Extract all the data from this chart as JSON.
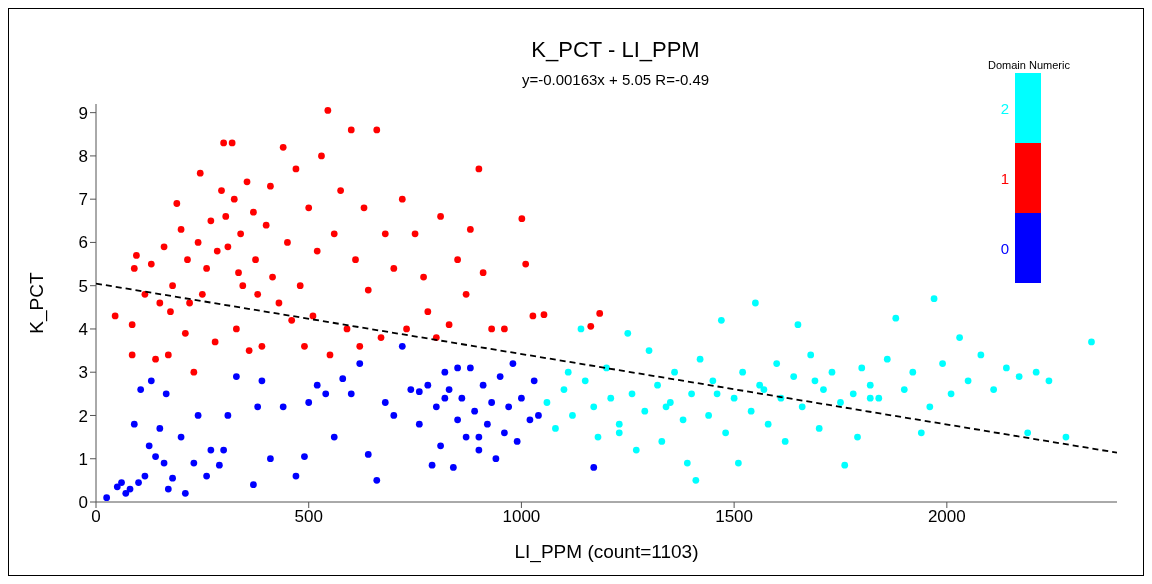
{
  "chart_data": {
    "type": "scatter",
    "title": "K_PCT - LI_PPM",
    "subtitle": "y=-0.00163x + 5.05  R=-0.49",
    "xlabel": "LI_PPM (count=1103)",
    "ylabel": "K_PCT",
    "legend_title": "Domain Numeric",
    "legend": "top right",
    "grid": false,
    "marker": "circle",
    "xlim": [
      0,
      2400
    ],
    "xticks": [
      0,
      500,
      1000,
      1500,
      2000
    ],
    "ylim": [
      0,
      9.2
    ],
    "yticks": [
      0,
      1,
      2,
      3,
      4,
      5,
      6,
      7,
      8,
      9
    ],
    "series": [
      {
        "name": "0",
        "color": "#0000ff",
        "x": [
          25,
          50,
          60,
          70,
          80,
          90,
          100,
          105,
          115,
          125,
          130,
          140,
          150,
          160,
          165,
          170,
          180,
          200,
          210,
          230,
          240,
          260,
          270,
          290,
          300,
          310,
          330,
          370,
          380,
          390,
          410,
          440,
          470,
          490,
          500,
          520,
          540,
          560,
          580,
          600,
          620,
          640,
          660,
          680,
          700,
          720,
          740,
          760,
          760,
          780,
          790,
          800,
          810,
          820,
          820,
          830,
          840,
          850,
          850,
          860,
          870,
          880,
          890,
          900,
          900,
          910,
          920,
          930,
          940,
          950,
          960,
          970,
          980,
          990,
          1000,
          1020,
          1030,
          1040,
          1170
        ],
        "values": [
          0.1,
          0.35,
          0.45,
          0.2,
          0.3,
          1.8,
          0.45,
          2.6,
          0.6,
          1.3,
          2.8,
          1.05,
          1.7,
          0.9,
          2.5,
          0.3,
          0.55,
          1.5,
          0.2,
          0.9,
          2.0,
          0.6,
          1.2,
          0.85,
          1.2,
          2.0,
          2.9,
          0.4,
          2.2,
          2.8,
          1.0,
          2.2,
          0.6,
          1.05,
          2.3,
          2.7,
          2.5,
          1.5,
          2.85,
          2.5,
          3.2,
          1.1,
          0.5,
          2.3,
          2.0,
          3.6,
          2.6,
          1.8,
          2.55,
          2.7,
          0.85,
          2.2,
          1.3,
          3.0,
          2.4,
          2.6,
          0.8,
          1.9,
          3.1,
          2.4,
          1.5,
          3.1,
          2.1,
          1.2,
          1.5,
          2.7,
          1.8,
          2.3,
          1.0,
          2.9,
          1.6,
          2.2,
          3.2,
          1.4,
          2.4,
          1.9,
          2.8,
          2.0,
          0.8
        ]
      },
      {
        "name": "1",
        "color": "#ff0000",
        "x": [
          45,
          85,
          85,
          90,
          95,
          115,
          130,
          140,
          150,
          160,
          170,
          175,
          180,
          190,
          200,
          210,
          215,
          220,
          230,
          240,
          245,
          250,
          260,
          270,
          280,
          285,
          295,
          300,
          305,
          310,
          320,
          325,
          330,
          335,
          340,
          345,
          355,
          360,
          370,
          375,
          380,
          390,
          400,
          410,
          415,
          430,
          440,
          450,
          460,
          470,
          480,
          490,
          500,
          510,
          520,
          530,
          545,
          550,
          560,
          575,
          590,
          600,
          610,
          620,
          630,
          640,
          660,
          670,
          680,
          700,
          720,
          730,
          750,
          770,
          780,
          800,
          810,
          830,
          850,
          870,
          880,
          900,
          910,
          930,
          960,
          1001,
          1010,
          1027,
          1053,
          1163,
          1184
        ],
        "values": [
          4.3,
          3.4,
          4.1,
          5.4,
          5.7,
          4.8,
          5.5,
          3.3,
          4.6,
          5.9,
          3.4,
          4.4,
          5.0,
          6.9,
          6.3,
          3.9,
          5.6,
          4.6,
          3.0,
          6.0,
          7.6,
          4.8,
          5.4,
          6.5,
          3.7,
          5.8,
          7.2,
          8.3,
          6.6,
          5.9,
          8.3,
          7.0,
          4.0,
          5.3,
          6.2,
          5.0,
          7.4,
          3.5,
          6.7,
          5.6,
          4.8,
          3.6,
          6.4,
          7.3,
          5.2,
          4.6,
          8.2,
          6.0,
          4.2,
          7.7,
          5.0,
          3.6,
          6.8,
          4.3,
          5.8,
          8.0,
          9.05,
          3.4,
          6.2,
          7.2,
          4.0,
          8.6,
          5.6,
          3.6,
          6.8,
          4.9,
          8.6,
          3.8,
          6.2,
          5.4,
          7.0,
          4.0,
          6.2,
          5.2,
          4.4,
          3.8,
          6.6,
          4.1,
          5.6,
          4.8,
          6.3,
          7.7,
          5.3,
          4.0,
          4.0,
          6.55,
          5.5,
          4.3,
          4.33,
          4.06,
          4.36
        ]
      },
      {
        "name": "2",
        "color": "#00ffff",
        "x": [
          1060,
          1080,
          1100,
          1110,
          1120,
          1140,
          1150,
          1170,
          1180,
          1200,
          1210,
          1230,
          1230,
          1250,
          1260,
          1270,
          1290,
          1300,
          1320,
          1330,
          1340,
          1350,
          1360,
          1380,
          1390,
          1400,
          1410,
          1420,
          1440,
          1450,
          1460,
          1470,
          1480,
          1500,
          1510,
          1520,
          1540,
          1550,
          1560,
          1570,
          1580,
          1600,
          1610,
          1620,
          1640,
          1650,
          1660,
          1680,
          1690,
          1700,
          1710,
          1730,
          1750,
          1760,
          1780,
          1790,
          1800,
          1820,
          1820,
          1840,
          1860,
          1880,
          1900,
          1920,
          1940,
          1960,
          1970,
          1990,
          2010,
          2030,
          2050,
          2080,
          2110,
          2140,
          2170,
          2190,
          2210,
          2240,
          2280,
          2340
        ],
        "values": [
          2.3,
          1.7,
          2.6,
          3.0,
          2.0,
          4.0,
          2.8,
          2.2,
          1.5,
          3.1,
          2.4,
          1.8,
          1.6,
          3.9,
          2.5,
          1.2,
          2.1,
          3.5,
          2.7,
          1.4,
          2.2,
          2.3,
          3.0,
          1.9,
          0.9,
          2.5,
          0.5,
          3.3,
          2.0,
          2.8,
          2.5,
          4.2,
          1.6,
          2.4,
          0.9,
          3.0,
          2.1,
          4.6,
          2.7,
          2.6,
          1.8,
          3.2,
          2.4,
          1.4,
          2.9,
          4.1,
          2.2,
          3.4,
          2.8,
          1.7,
          2.6,
          3.0,
          2.3,
          0.85,
          2.5,
          1.5,
          3.1,
          2.7,
          2.4,
          2.4,
          3.3,
          4.25,
          2.6,
          3.0,
          1.6,
          2.2,
          4.7,
          3.2,
          2.5,
          3.8,
          2.8,
          3.4,
          2.6,
          3.1,
          2.9,
          1.6,
          3.0,
          2.8,
          1.5,
          3.7
        ]
      },
      {
        "type": "line",
        "color": "#000000",
        "line_style": "dashed",
        "marker": "none",
        "x": [
          0,
          2400
        ],
        "values": [
          5.05,
          1.14
        ]
      }
    ]
  }
}
